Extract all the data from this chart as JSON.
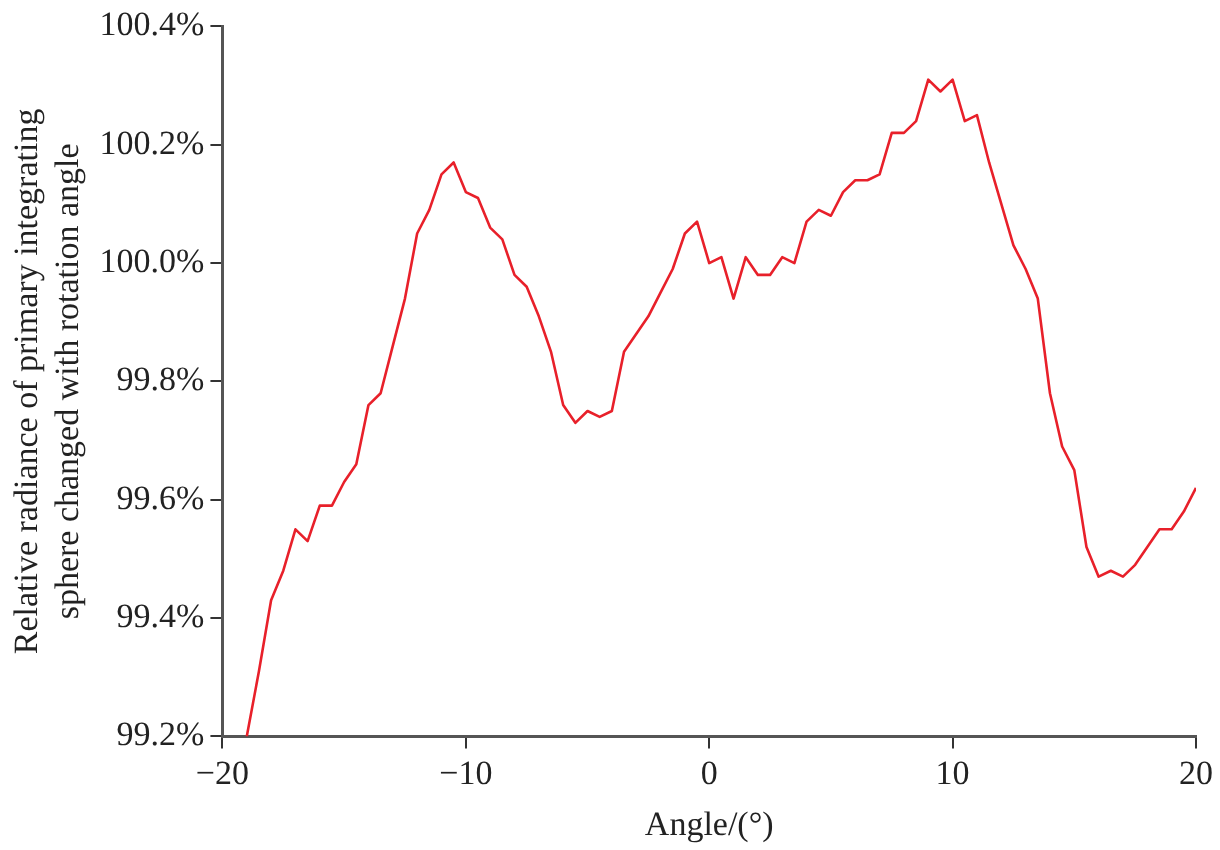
{
  "chart_data": {
    "type": "line",
    "xlabel": "Angle/(°)",
    "ylabel": "Relative radiance of primary integrating sphere changed with rotation angle",
    "x": [
      -19,
      -18.5,
      -18,
      -17.5,
      -17,
      -16.5,
      -16,
      -15.5,
      -15,
      -14.5,
      -14,
      -13.5,
      -13,
      -12.5,
      -12,
      -11.5,
      -11,
      -10.5,
      -10,
      -9.5,
      -9,
      -8.5,
      -8,
      -7.5,
      -7,
      -6.5,
      -6,
      -5.5,
      -5,
      -4.5,
      -4,
      -3.5,
      -3,
      -2.5,
      -2,
      -1.5,
      -1,
      -0.5,
      0,
      0.5,
      1,
      1.5,
      2,
      2.5,
      3,
      3.5,
      4,
      4.5,
      5,
      5.5,
      6,
      6.5,
      7,
      7.5,
      8,
      8.5,
      9,
      9.5,
      10,
      10.5,
      11,
      11.5,
      12,
      12.5,
      13,
      13.5,
      14,
      14.5,
      15,
      15.5,
      16,
      16.5,
      17,
      17.5,
      18,
      18.5,
      19,
      19.5,
      20
    ],
    "series": [
      {
        "color": "#e8202a",
        "values": [
          99.2,
          99.31,
          99.43,
          99.48,
          99.55,
          99.53,
          99.59,
          99.59,
          99.63,
          99.66,
          99.76,
          99.78,
          99.86,
          99.94,
          100.05,
          100.09,
          100.15,
          100.17,
          100.12,
          100.11,
          100.06,
          100.04,
          99.98,
          99.96,
          99.91,
          99.85,
          99.76,
          99.73,
          99.75,
          99.74,
          99.75,
          99.85,
          99.88,
          99.91,
          99.95,
          99.99,
          100.05,
          100.07,
          100,
          100.01,
          99.94,
          100.01,
          99.98,
          99.98,
          100.01,
          100,
          100.07,
          100.09,
          100.08,
          100.12,
          100.14,
          100.14,
          100.15,
          100.22,
          100.22,
          100.24,
          100.31,
          100.29,
          100.31,
          100.24,
          100.25,
          100.17,
          100.1,
          100.03,
          99.99,
          99.94,
          99.78,
          99.69,
          99.65,
          99.52,
          99.47,
          99.48,
          99.47,
          99.49,
          99.52,
          99.55,
          99.55,
          99.58,
          99.62
        ]
      }
    ],
    "xlim": [
      -20,
      20
    ],
    "xticks": [
      {
        "value": -20,
        "label": "−20"
      },
      {
        "value": -10,
        "label": "−10"
      },
      0,
      10,
      20
    ],
    "ylim": [
      99.2,
      100.4
    ],
    "yticks": [
      {
        "value": 99.2,
        "label": "99.2%"
      },
      {
        "value": 99.4,
        "label": "99.4%"
      },
      {
        "value": 99.6,
        "label": "99.6%"
      },
      {
        "value": 99.8,
        "label": "99.8%"
      },
      {
        "value": 100,
        "label": "100.0%"
      },
      {
        "value": 100.2,
        "label": "100.2%"
      },
      {
        "value": 100.4,
        "label": "100.4%"
      }
    ],
    "grid": false,
    "legend": false,
    "marker": "none",
    "line_style": "solid"
  }
}
